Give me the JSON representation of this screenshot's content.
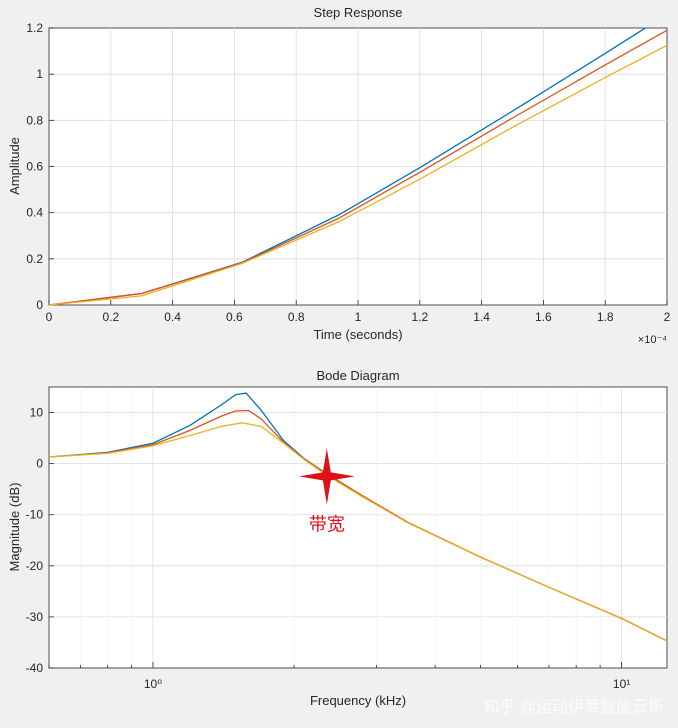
{
  "chart_data": [
    {
      "type": "line",
      "title": "Step Response",
      "xlabel": "Time (seconds)",
      "ylabel": "Amplitude",
      "x_exponent": "×10⁻⁴",
      "xlim": [
        0,
        0.0002
      ],
      "ylim": [
        0,
        1.2
      ],
      "grid": true,
      "x_ticks": [
        0,
        0.2,
        0.4,
        0.6,
        0.8,
        1,
        1.2,
        1.4,
        1.6,
        1.8,
        2
      ],
      "x_tick_labels": [
        "0",
        "0.2",
        "0.4",
        "0.6",
        "0.8",
        "1",
        "1.2",
        "1.4",
        "1.6",
        "1.8",
        "2"
      ],
      "y_ticks": [
        0,
        0.2,
        0.4,
        0.6,
        0.8,
        1,
        1.2
      ],
      "y_tick_labels": [
        "0",
        "0.2",
        "0.4",
        "0.6",
        "0.8",
        "1",
        "1.2"
      ],
      "series": [
        {
          "color": "#0072bd",
          "x": [
            0,
            3e-05,
            6.25e-05,
            9.37e-05,
            0.00012,
            0.00015,
            0.00018,
            0.000193
          ],
          "y": [
            0,
            0.05,
            0.185,
            0.39,
            0.595,
            0.84,
            1.09,
            1.2
          ]
        },
        {
          "color": "#d95319",
          "x": [
            0,
            3e-05,
            6.25e-05,
            9.37e-05,
            0.00012,
            0.00015,
            0.00018,
            0.0002
          ],
          "y": [
            0,
            0.05,
            0.183,
            0.375,
            0.575,
            0.81,
            1.04,
            1.19
          ]
        },
        {
          "color": "#edb120",
          "x": [
            0,
            3e-05,
            6.25e-05,
            9.37e-05,
            0.00012,
            0.00015,
            0.00018,
            0.0002
          ],
          "y": [
            0,
            0.04,
            0.18,
            0.36,
            0.545,
            0.77,
            0.985,
            1.125
          ]
        }
      ]
    },
    {
      "type": "line",
      "title": "Bode Diagram",
      "xlabel": "Frequency  (kHz)",
      "ylabel": "Magnitude (dB)",
      "x_scale": "log",
      "xlim": [
        0.6,
        12.5
      ],
      "ylim": [
        -40,
        15
      ],
      "grid": true,
      "x_major_ticks": [
        1,
        10
      ],
      "x_tick_labels": [
        "10⁰",
        "10¹"
      ],
      "x_minor_ticks": [
        0.6,
        0.7,
        0.8,
        0.9,
        2,
        3,
        4,
        5,
        6,
        7,
        8,
        9
      ],
      "y_ticks": [
        -40,
        -30,
        -20,
        -10,
        0,
        10
      ],
      "y_tick_labels": [
        "-40",
        "-30",
        "-20",
        "-10",
        "0",
        "10"
      ],
      "annotation": {
        "text": "带宽",
        "x": 2.35,
        "y": -2.5
      },
      "series": [
        {
          "color": "#0072bd",
          "x": [
            0.6,
            0.8,
            1.0,
            1.2,
            1.4,
            1.5,
            1.58,
            1.7,
            1.9,
            2.1,
            2.35,
            2.8,
            3.5,
            5,
            7,
            10,
            12.5
          ],
          "y": [
            1.3,
            2.2,
            4.0,
            7.5,
            11.5,
            13.5,
            13.8,
            10.5,
            4.5,
            1.0,
            -2.0,
            -6.3,
            -11.5,
            -18.3,
            -24.2,
            -30.3,
            -34.7
          ]
        },
        {
          "color": "#d95319",
          "x": [
            0.6,
            0.8,
            1.0,
            1.2,
            1.4,
            1.5,
            1.6,
            1.7,
            1.9,
            2.1,
            2.35,
            2.8,
            3.5,
            5,
            7,
            10,
            12.5
          ],
          "y": [
            1.3,
            2.1,
            3.7,
            6.5,
            9.3,
            10.3,
            10.4,
            8.8,
            4.2,
            0.9,
            -2.0,
            -6.3,
            -11.5,
            -18.3,
            -24.2,
            -30.3,
            -34.7
          ]
        },
        {
          "color": "#edb120",
          "x": [
            0.6,
            0.8,
            1.0,
            1.2,
            1.4,
            1.55,
            1.7,
            1.9,
            2.1,
            2.35,
            2.8,
            3.5,
            5,
            7,
            10,
            12.5
          ],
          "y": [
            1.3,
            2.0,
            3.5,
            5.5,
            7.3,
            8.0,
            7.3,
            4.0,
            0.8,
            -2.3,
            -6.5,
            -11.6,
            -18.3,
            -24.2,
            -30.3,
            -34.7
          ]
        }
      ]
    }
  ],
  "watermark": "知乎 @运动伊莱智能云斯"
}
